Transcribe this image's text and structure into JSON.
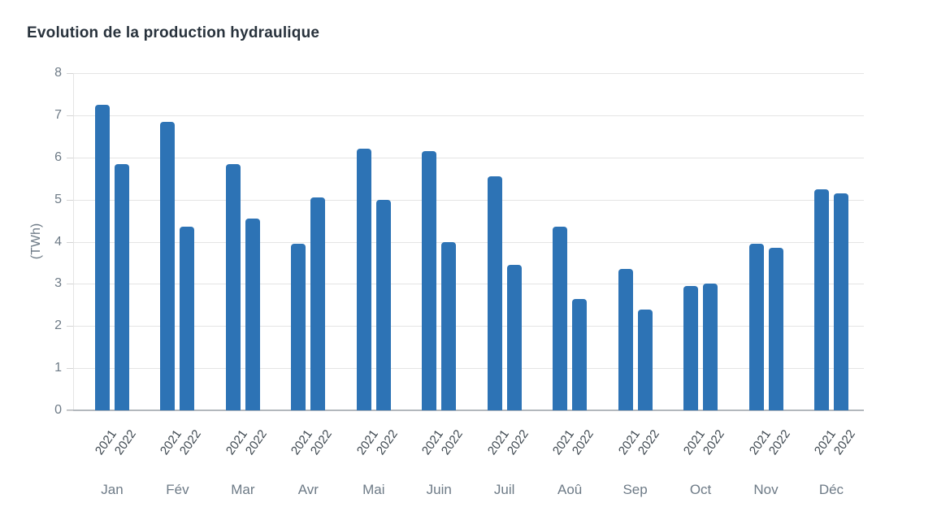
{
  "chart_data": {
    "type": "bar",
    "title": "Evolution de la production hydraulique",
    "ylabel": "(TWh)",
    "ylim": [
      0,
      8
    ],
    "ytick_step": 1,
    "grid": "horizontal",
    "legend_position": "none",
    "bar_color": "#2d73b5",
    "categories": [
      "Jan",
      "Fév",
      "Mar",
      "Avr",
      "Mai",
      "Juin",
      "Juil",
      "Aoû",
      "Sep",
      "Oct",
      "Nov",
      "Déc"
    ],
    "series": [
      {
        "name": "2021",
        "values": [
          7.25,
          6.85,
          5.85,
          3.95,
          6.2,
          6.15,
          5.55,
          4.35,
          3.35,
          2.95,
          3.95,
          5.25
        ]
      },
      {
        "name": "2022",
        "values": [
          5.85,
          4.35,
          4.55,
          5.05,
          5.0,
          4.0,
          3.45,
          2.65,
          2.4,
          3.0,
          3.85,
          5.15
        ]
      }
    ]
  }
}
